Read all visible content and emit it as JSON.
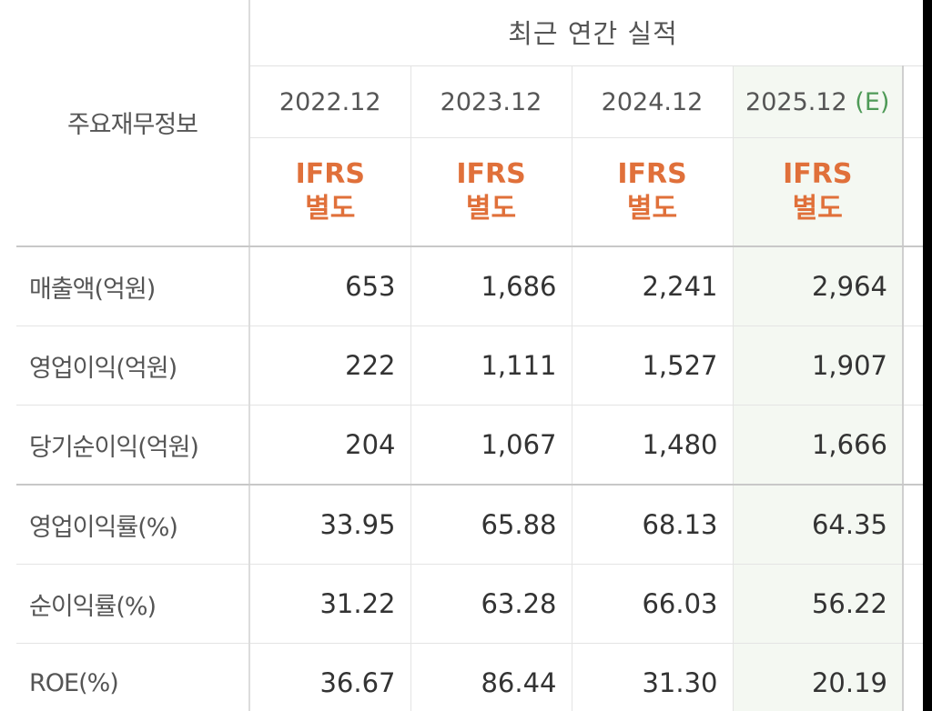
{
  "table": {
    "label_header": "주요재무정보",
    "group_header": "최근 연간 실적",
    "periods": [
      {
        "year": "2022.12",
        "estimate": ""
      },
      {
        "year": "2023.12",
        "estimate": ""
      },
      {
        "year": "2024.12",
        "estimate": ""
      },
      {
        "year": "2025.12",
        "estimate": "(E)"
      }
    ],
    "basis": [
      {
        "line1": "IFRS",
        "line2": "별도"
      },
      {
        "line1": "IFRS",
        "line2": "별도"
      },
      {
        "line1": "IFRS",
        "line2": "별도"
      },
      {
        "line1": "IFRS",
        "line2": "별도"
      }
    ],
    "rows": [
      {
        "label": "매출액(억원)",
        "values": [
          "653",
          "1,686",
          "2,241",
          "2,964"
        ]
      },
      {
        "label": "영업이익(억원)",
        "values": [
          "222",
          "1,111",
          "1,527",
          "1,907"
        ]
      },
      {
        "label": "당기순이익(억원)",
        "values": [
          "204",
          "1,067",
          "1,480",
          "1,666"
        ]
      },
      {
        "label": "영업이익률(%)",
        "values": [
          "33.95",
          "65.88",
          "68.13",
          "64.35"
        ]
      },
      {
        "label": "순이익률(%)",
        "values": [
          "31.22",
          "63.28",
          "66.03",
          "56.22"
        ]
      },
      {
        "label": "ROE(%)",
        "values": [
          "36.67",
          "86.44",
          "31.30",
          "20.19"
        ]
      }
    ]
  }
}
